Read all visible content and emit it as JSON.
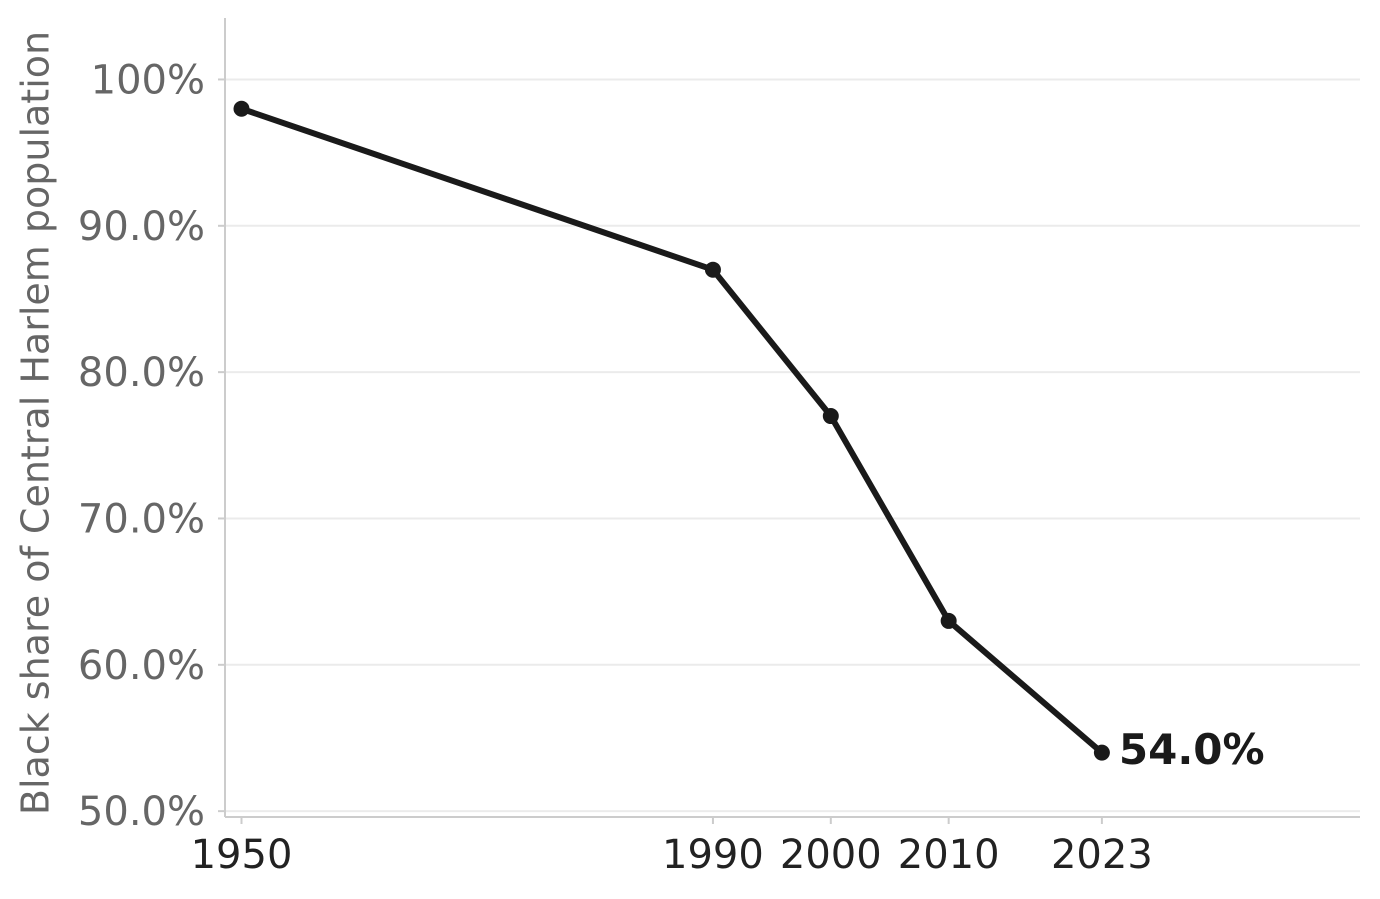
{
  "chart_data": {
    "type": "line",
    "y_label": "Black share of Central Harlem population",
    "x": [
      1950,
      1990,
      2000,
      2010,
      2023
    ],
    "values": [
      98,
      87,
      77,
      63,
      54
    ],
    "value_labels": [
      null,
      null,
      null,
      null,
      "54.0%"
    ],
    "color": "#1a1a1a",
    "xlim": [
      1948.6,
      2044.9
    ],
    "xticks": [
      1950,
      1990,
      2000,
      2010,
      2023
    ],
    "ylim": [
      49.6,
      104.2
    ],
    "yticks": [
      {
        "value": 50,
        "label": "50.0%"
      },
      {
        "value": 60,
        "label": "60.0%"
      },
      {
        "value": 70,
        "label": "70.0%"
      },
      {
        "value": 80,
        "label": "80.0%"
      },
      {
        "value": 90,
        "label": "90.0%"
      },
      {
        "value": 100,
        "label": "100%"
      }
    ],
    "grid": true
  }
}
